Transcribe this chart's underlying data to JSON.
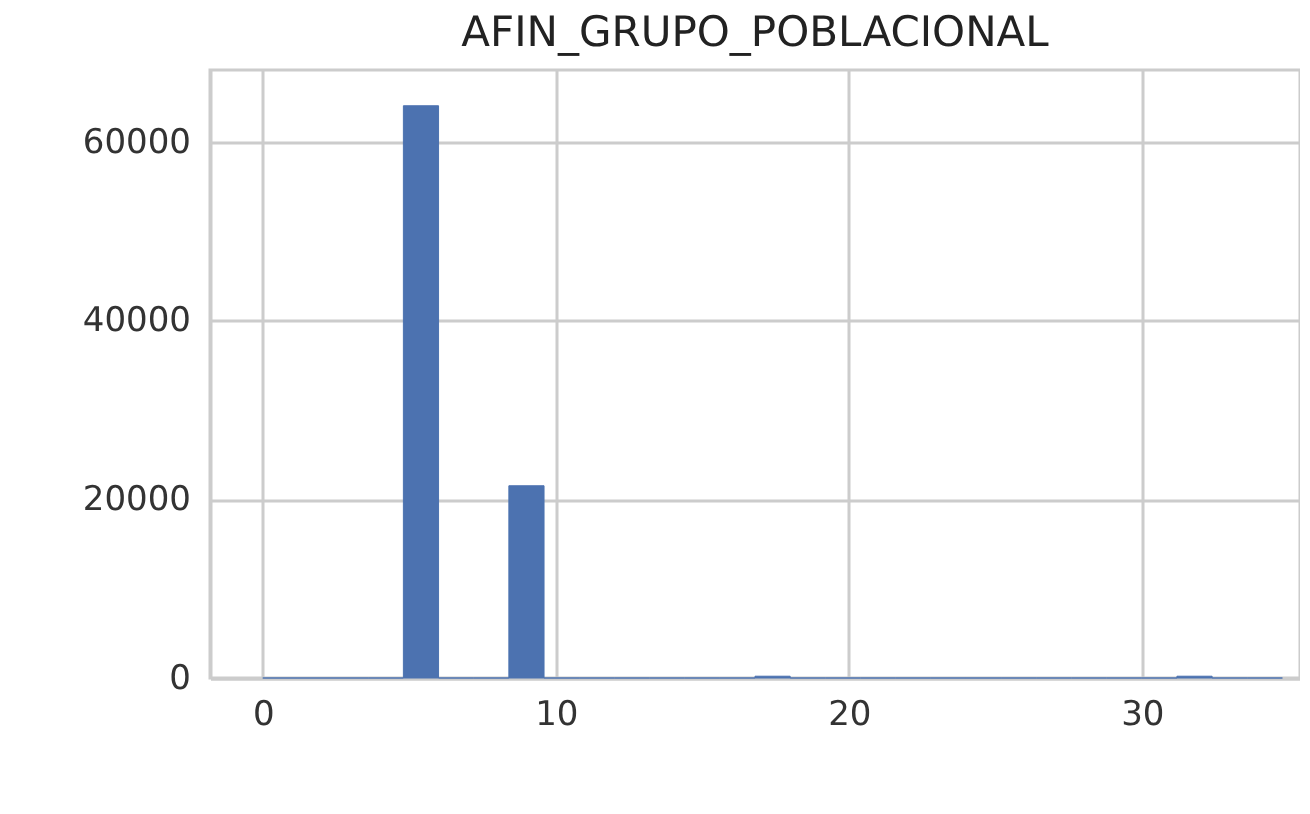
{
  "chart_data": {
    "type": "histogram",
    "title": "AFIN_GRUPO_POBLACIONAL",
    "bins": [
      0,
      1.2,
      2.4,
      3.6,
      4.8,
      6.0,
      7.2,
      8.4,
      9.6,
      10.8,
      12.0,
      13.2,
      14.4,
      15.6,
      16.8,
      18.0,
      19.2,
      20.4,
      21.6,
      22.8,
      24.0,
      25.2,
      26.4,
      27.6,
      28.8,
      30.0,
      31.2,
      32.4,
      33.6,
      34.8
    ],
    "values": [
      0,
      0,
      0,
      0,
      64000,
      0,
      0,
      21500,
      0,
      0,
      0,
      0,
      0,
      0,
      200,
      0,
      0,
      0,
      0,
      0,
      0,
      0,
      0,
      0,
      0,
      0,
      200,
      0,
      0
    ],
    "color": "#4c72b0",
    "xlim": [
      -1.8,
      35.4
    ],
    "xticks": [
      0,
      10,
      20,
      30
    ],
    "ylim": [
      0,
      68000
    ],
    "yticks": [
      0,
      20000,
      40000,
      60000
    ],
    "grid": true
  }
}
